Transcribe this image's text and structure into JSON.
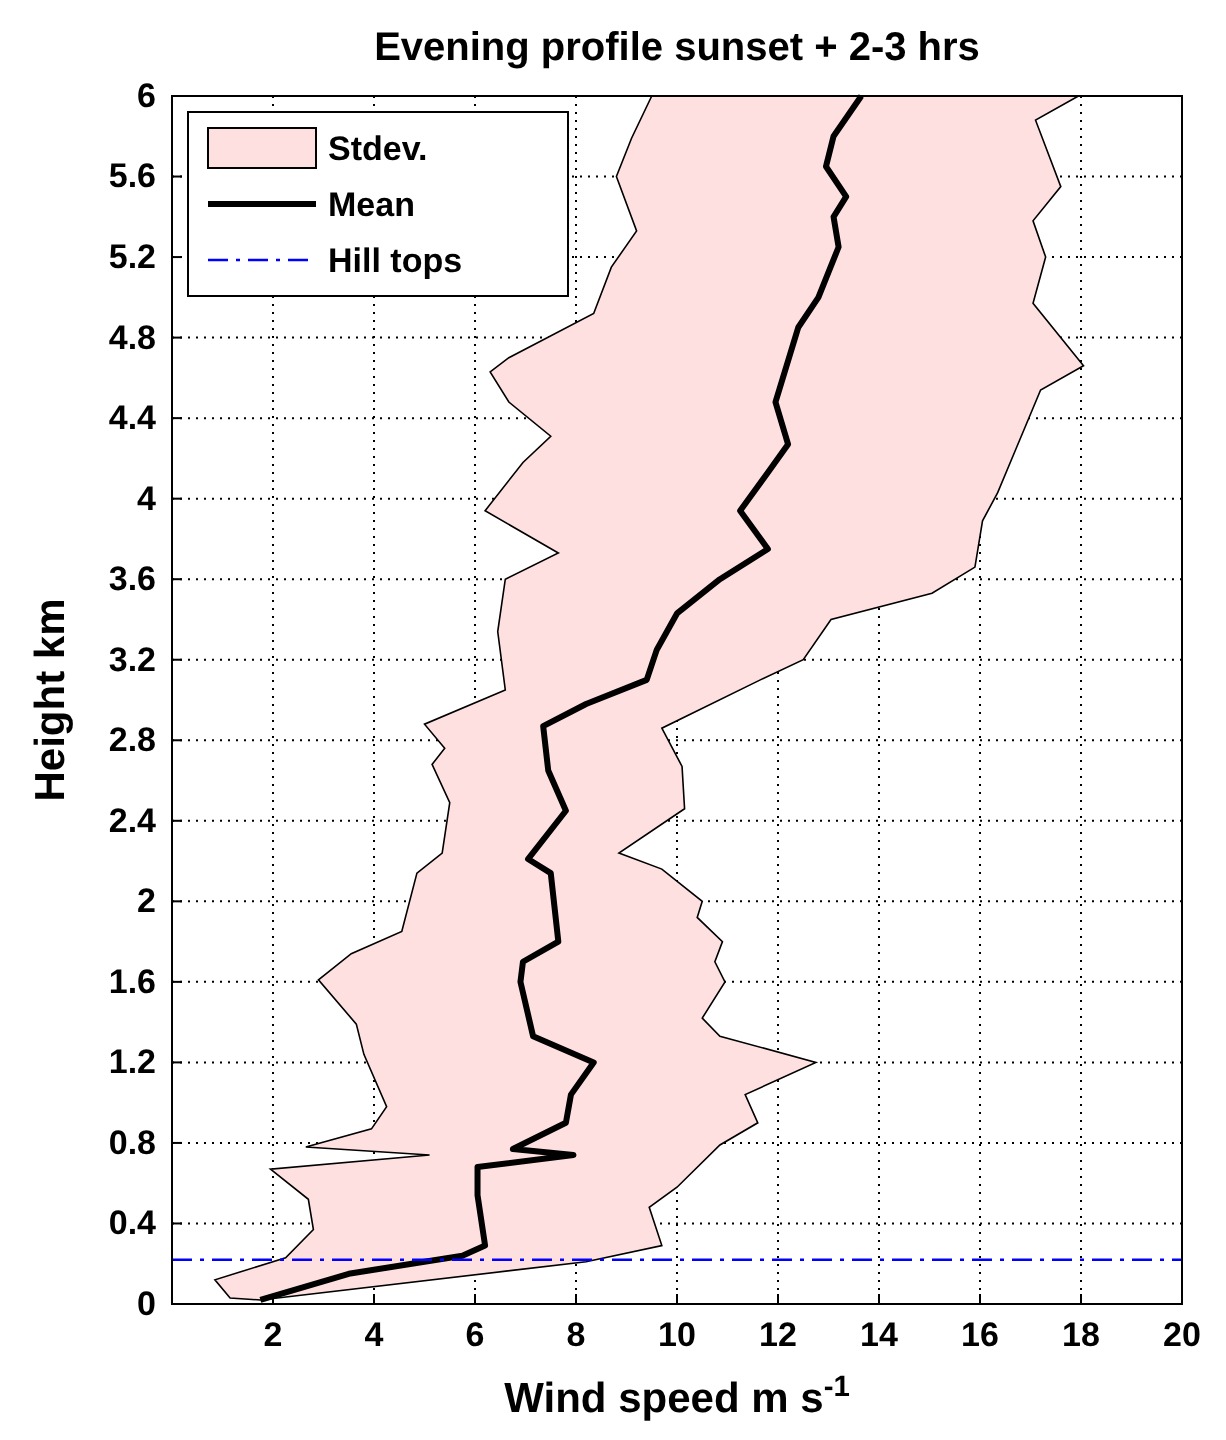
{
  "chart_data": {
    "type": "line",
    "title": "Evening profile sunset + 2-3 hrs",
    "xlabel": "Wind speed m s$^{-1}$",
    "ylabel": "Height km",
    "xlim": [
      0,
      20
    ],
    "xticks": [
      {
        "value": 0,
        "label": null
      },
      2,
      4,
      6,
      8,
      10,
      12,
      14,
      16,
      18,
      20
    ],
    "ylim": [
      0,
      6
    ],
    "yticks": [
      0,
      0.4,
      0.8,
      1.2,
      1.6,
      2,
      2.4,
      2.8,
      3.2,
      3.6,
      4,
      4.4,
      4.8,
      5.2,
      5.6,
      6
    ],
    "grid": true,
    "legend": "top left",
    "series": [
      {
        "name": "Stdev.",
        "type": "area",
        "color": "#ffe0e0",
        "x": [
          1.75,
          1.15,
          0.85,
          2.25,
          2.8,
          2.7,
          1.95,
          5.1,
          2.65,
          3.95,
          4.25,
          3.8,
          3.65,
          2.9,
          3.55,
          4.55,
          4.85,
          5.35,
          5.5,
          5.15,
          5.4,
          5.0,
          6.6,
          6.45,
          6.6,
          7.65,
          6.2,
          6.95,
          7.5,
          6.67,
          6.3,
          6.67,
          8.35,
          8.7,
          9.2,
          8.8,
          9.1,
          9.5,
          17.95,
          17.1,
          17.6,
          17.05,
          17.3,
          17.05,
          18.05,
          17.2,
          16.9,
          16.35,
          16.05,
          15.9,
          15.05,
          13.05,
          12.5,
          11.65,
          9.7,
          10.1,
          10.15,
          8.85,
          9.7,
          10.5,
          10.4,
          10.9,
          10.75,
          10.95,
          10.5,
          10.85,
          12.75,
          11.35,
          11.6,
          10.85,
          10.0,
          9.45,
          9.7,
          8.2
        ],
        "values": [
          0.02,
          0.03,
          0.12,
          0.23,
          0.37,
          0.52,
          0.67,
          0.74,
          0.78,
          0.87,
          0.98,
          1.24,
          1.39,
          1.61,
          1.74,
          1.85,
          2.14,
          2.24,
          2.49,
          2.68,
          2.76,
          2.88,
          3.05,
          3.34,
          3.6,
          3.73,
          3.94,
          4.18,
          4.31,
          4.48,
          4.63,
          4.7,
          4.92,
          5.15,
          5.33,
          5.6,
          5.79,
          6.0,
          6.0,
          5.88,
          5.55,
          5.38,
          5.2,
          4.97,
          4.66,
          4.54,
          4.36,
          4.03,
          3.89,
          3.66,
          3.53,
          3.4,
          3.2,
          3.1,
          2.86,
          2.67,
          2.46,
          2.24,
          2.16,
          2.0,
          1.92,
          1.8,
          1.7,
          1.6,
          1.42,
          1.33,
          1.2,
          1.04,
          0.9,
          0.79,
          0.58,
          0.48,
          0.29,
          0.21
        ]
      },
      {
        "name": "Mean",
        "color": "#000000",
        "x": [
          1.75,
          3.5,
          5.75,
          6.2,
          6.05,
          6.05,
          7.95,
          6.75,
          7.8,
          7.9,
          8.35,
          7.15,
          6.9,
          6.95,
          7.65,
          7.5,
          7.05,
          7.8,
          7.45,
          7.35,
          8.2,
          9.4,
          9.6,
          10.0,
          10.85,
          11.8,
          11.25,
          11.8,
          12.2,
          11.95,
          12.4,
          12.8,
          13.2,
          13.1,
          13.35,
          12.95,
          13.1,
          13.65
        ],
        "values": [
          0.02,
          0.15,
          0.24,
          0.29,
          0.54,
          0.68,
          0.74,
          0.77,
          0.9,
          1.04,
          1.2,
          1.33,
          1.6,
          1.7,
          1.8,
          2.14,
          2.21,
          2.45,
          2.65,
          2.87,
          2.98,
          3.1,
          3.25,
          3.43,
          3.6,
          3.75,
          3.94,
          4.13,
          4.27,
          4.48,
          4.85,
          5.0,
          5.25,
          5.4,
          5.5,
          5.65,
          5.8,
          6.0
        ]
      }
    ],
    "ref_lines": [
      {
        "axis": "y",
        "value": 0.22,
        "label": "Hill tops",
        "color": "#0000ff",
        "line_style": "dashed"
      }
    ]
  }
}
